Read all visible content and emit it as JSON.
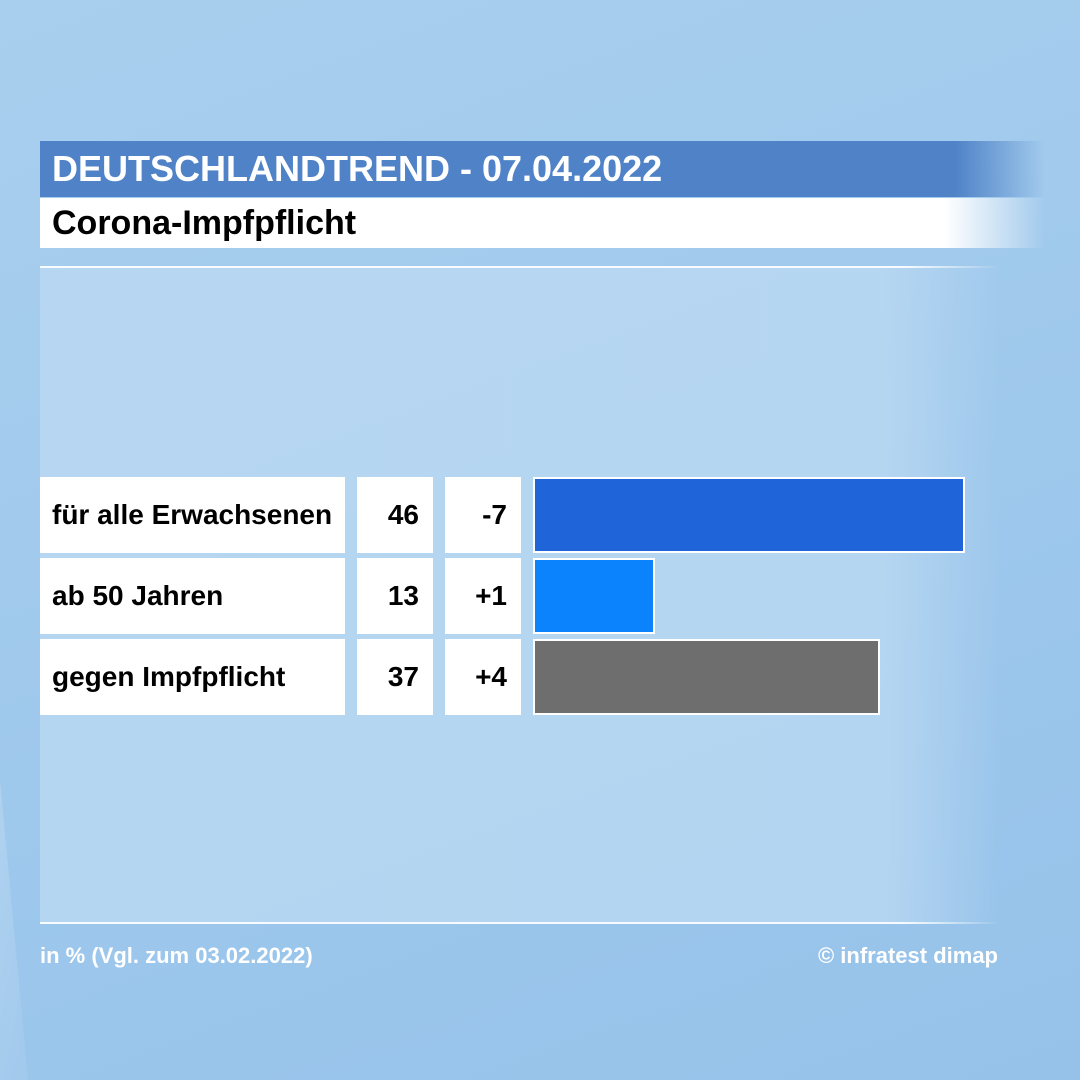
{
  "header": {
    "title": "DEUTSCHLANDTREND - 07.04.2022",
    "subtitle": "Corona-Impfpflicht"
  },
  "chart_data": {
    "type": "bar",
    "orientation": "horizontal",
    "title": "Corona-Impfpflicht",
    "categories": [
      "für alle Erwachsenen",
      "ab 50 Jahren",
      "gegen Impfpflicht"
    ],
    "values": [
      46,
      13,
      37
    ],
    "changes": [
      "-7",
      "+1",
      "+4"
    ],
    "colors": [
      "#1f64d8",
      "#0a83fd",
      "#6e6e6e"
    ],
    "xlim": [
      0,
      46
    ],
    "grid": false,
    "legend": "none"
  },
  "footer": {
    "note": "in % (Vgl. zum 03.02.2022)",
    "source": "© infratest dimap"
  }
}
